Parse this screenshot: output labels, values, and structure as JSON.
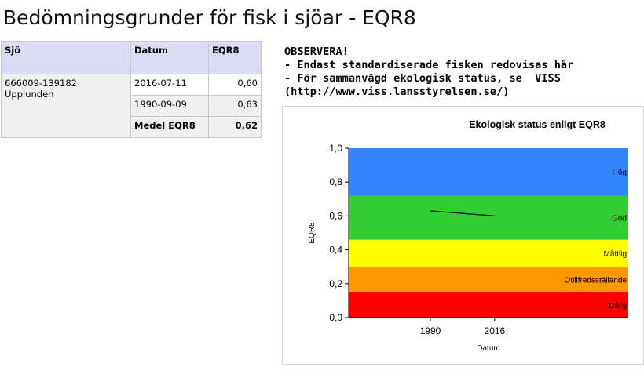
{
  "page": {
    "title": "Bedömningsgrunder för fisk i sjöar - EQR8"
  },
  "table": {
    "headers": [
      "Sjö",
      "Datum",
      "EQR8"
    ],
    "lake": "666009-139182 Upplunden",
    "rows": [
      {
        "date": "2016-07-11",
        "value": "0,60"
      },
      {
        "date": "1990-09-09",
        "value": "0,63"
      }
    ],
    "mean_label": "Medel EQR8",
    "mean_value": "0,62"
  },
  "notice": {
    "lines": [
      "OBSERVERA!",
      "- Endast standardiserade fisken redovisas här",
      "- För sammanvägd ekologisk status, se  VISS",
      "(http://www.viss.lansstyrelsen.se/)"
    ]
  },
  "chart_data": {
    "type": "line",
    "title": "Ekologisk status enligt EQR8",
    "xlabel": "Datum",
    "ylabel": "EQR8",
    "ylim": [
      0,
      1
    ],
    "yticks": [
      "0,0",
      "0,2",
      "0,4",
      "0,6",
      "0,8",
      "1,0"
    ],
    "xlim": [
      1957,
      2070
    ],
    "xticks": [
      1990,
      2016
    ],
    "grid": false,
    "legend": "none",
    "bands": [
      {
        "name": "Dålig",
        "from": 0.0,
        "to": 0.15,
        "color": "#ff0000"
      },
      {
        "name": "Otillfredsställande",
        "from": 0.15,
        "to": 0.3,
        "color": "#ff9900"
      },
      {
        "name": "Måttlig",
        "from": 0.3,
        "to": 0.46,
        "color": "#ffff00"
      },
      {
        "name": "God",
        "from": 0.46,
        "to": 0.72,
        "color": "#33cc33"
      },
      {
        "name": "Hög",
        "from": 0.72,
        "to": 1.0,
        "color": "#3385ff"
      }
    ],
    "series": [
      {
        "x": [
          1990,
          2016
        ],
        "y": [
          0.63,
          0.6
        ],
        "color": "#000000"
      }
    ]
  }
}
